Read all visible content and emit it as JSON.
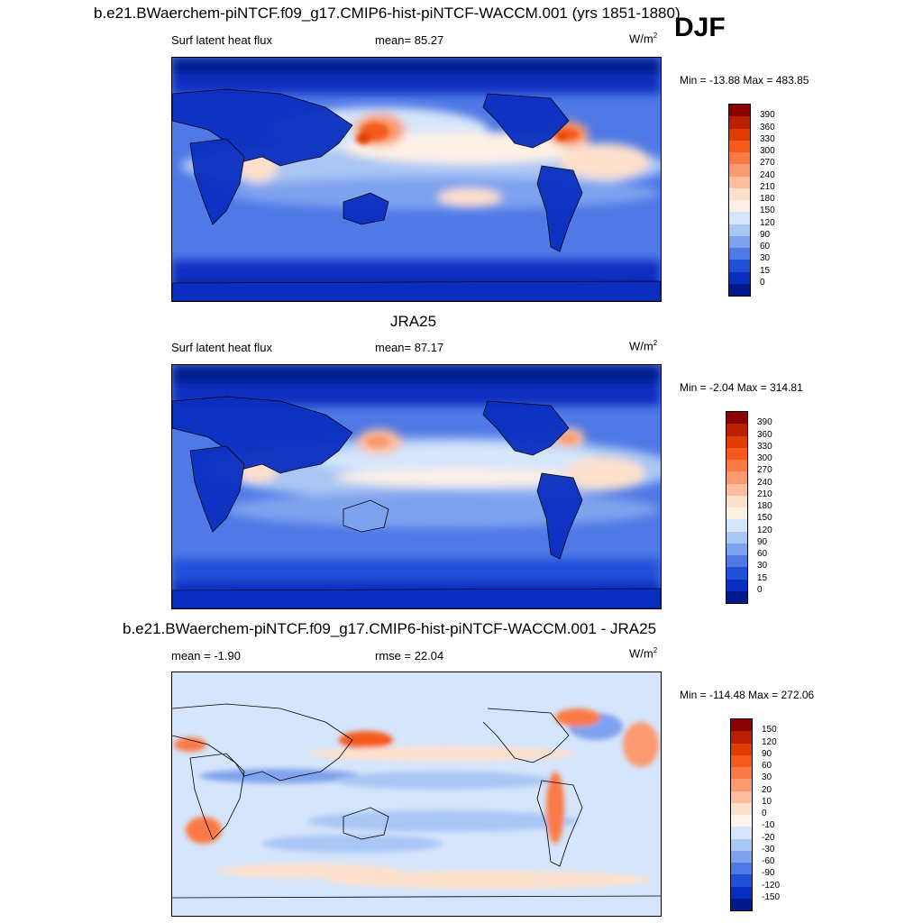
{
  "season": "DJF",
  "panels": [
    {
      "title": "b.e21.BWaerchem-piNTCF.f09_g17.CMIP6-hist-piNTCF-WACCM.001 (yrs 1851-1880)",
      "left_label": "Surf latent heat flux",
      "mid_label": "mean=  85.27",
      "units": "W/m",
      "units_sup": "2",
      "minmax": "Min = -13.88 Max = 483.85",
      "colorbar_labels": [
        "390",
        "360",
        "330",
        "300",
        "270",
        "240",
        "210",
        "180",
        "150",
        "120",
        "90",
        "60",
        "30",
        "15",
        "0"
      ],
      "colorbar_colors": [
        "#8b0000",
        "#b82000",
        "#e03c00",
        "#f55a1a",
        "#fa7a45",
        "#fb9a70",
        "#fdbd9e",
        "#fde0cc",
        "#fdf1e6",
        "#d5e5fb",
        "#a9c6f4",
        "#7fa2ee",
        "#4f79e6",
        "#2150d8",
        "#0a2fc0",
        "#001a8c"
      ]
    },
    {
      "title": "JRA25",
      "left_label": "Surf latent heat flux",
      "mid_label": "mean=  87.17",
      "units": "W/m",
      "units_sup": "2",
      "minmax": "Min =  -2.04 Max = 314.81",
      "colorbar_labels": [
        "390",
        "360",
        "330",
        "300",
        "270",
        "240",
        "210",
        "180",
        "150",
        "120",
        "90",
        "60",
        "30",
        "15",
        "0"
      ],
      "colorbar_colors": [
        "#8b0000",
        "#b82000",
        "#e03c00",
        "#f55a1a",
        "#fa7a45",
        "#fb9a70",
        "#fdbd9e",
        "#fde0cc",
        "#fdf1e6",
        "#d5e5fb",
        "#a9c6f4",
        "#7fa2ee",
        "#4f79e6",
        "#2150d8",
        "#0a2fc0",
        "#001a8c"
      ]
    },
    {
      "title": "b.e21.BWaerchem-piNTCF.f09_g17.CMIP6-hist-piNTCF-WACCM.001 - JRA25",
      "left_label": "mean =  -1.90",
      "mid_label": "rmse =  22.04",
      "units": "W/m",
      "units_sup": "2",
      "minmax": "Min = -114.48 Max = 272.06",
      "colorbar_labels": [
        "150",
        "120",
        "90",
        "60",
        "30",
        "20",
        "10",
        "0",
        "-10",
        "-20",
        "-30",
        "-60",
        "-90",
        "-120",
        "-150"
      ],
      "colorbar_colors": [
        "#8b0000",
        "#b82000",
        "#e03c00",
        "#f55a1a",
        "#fa7a45",
        "#fb9a70",
        "#fdbd9e",
        "#fde0cc",
        "#fdf5ee",
        "#d5e5fb",
        "#a9c6f4",
        "#7fa2ee",
        "#4f79e6",
        "#2150d8",
        "#0a2fc0",
        "#001a8c"
      ]
    }
  ]
}
